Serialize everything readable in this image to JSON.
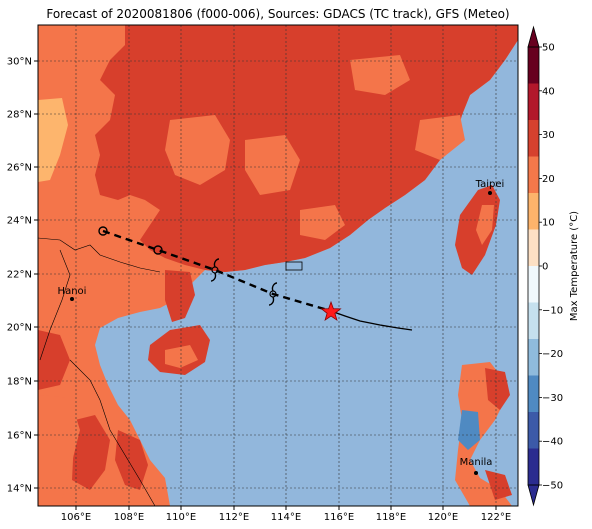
{
  "title": "Forecast of 2020081806 (f000-006), Sources: GDACS (TC track), GFS (Meteo)",
  "lat_labels": [
    "14°N",
    "16°N",
    "18°N",
    "20°N",
    "22°N",
    "24°N",
    "26°N",
    "28°N",
    "30°N"
  ],
  "lon_labels": [
    "106°E",
    "108°E",
    "110°E",
    "112°E",
    "114°E",
    "116°E",
    "118°E",
    "120°E",
    "122°E"
  ],
  "cities": [
    {
      "name": "Hanoi"
    },
    {
      "name": "Taipei"
    },
    {
      "name": "Manila"
    }
  ],
  "colorbar": {
    "label": "Max Temperature (°C)",
    "ticks": [
      "50",
      "40",
      "30",
      "20",
      "10",
      "0",
      "−10",
      "−20",
      "−30",
      "−40",
      "−50"
    ],
    "colors": [
      "#67001f",
      "#b2182b",
      "#d6412e",
      "#f4784a",
      "#fdb36b",
      "#fde0c4",
      "#f0f8fc",
      "#c5e0ee",
      "#8fbbdc",
      "#4f8ac2",
      "#3c5aa8",
      "#2b2c8f"
    ]
  },
  "colors": {
    "land_hot": "#d73f2c",
    "land_warm": "#f4754a",
    "land_mild": "#fdb56d",
    "sea": "#92b7dc",
    "track": "#000000",
    "current_position": "#ff1a1a"
  },
  "track": {
    "forecast_style": "dashed",
    "observed_style": "solid"
  }
}
